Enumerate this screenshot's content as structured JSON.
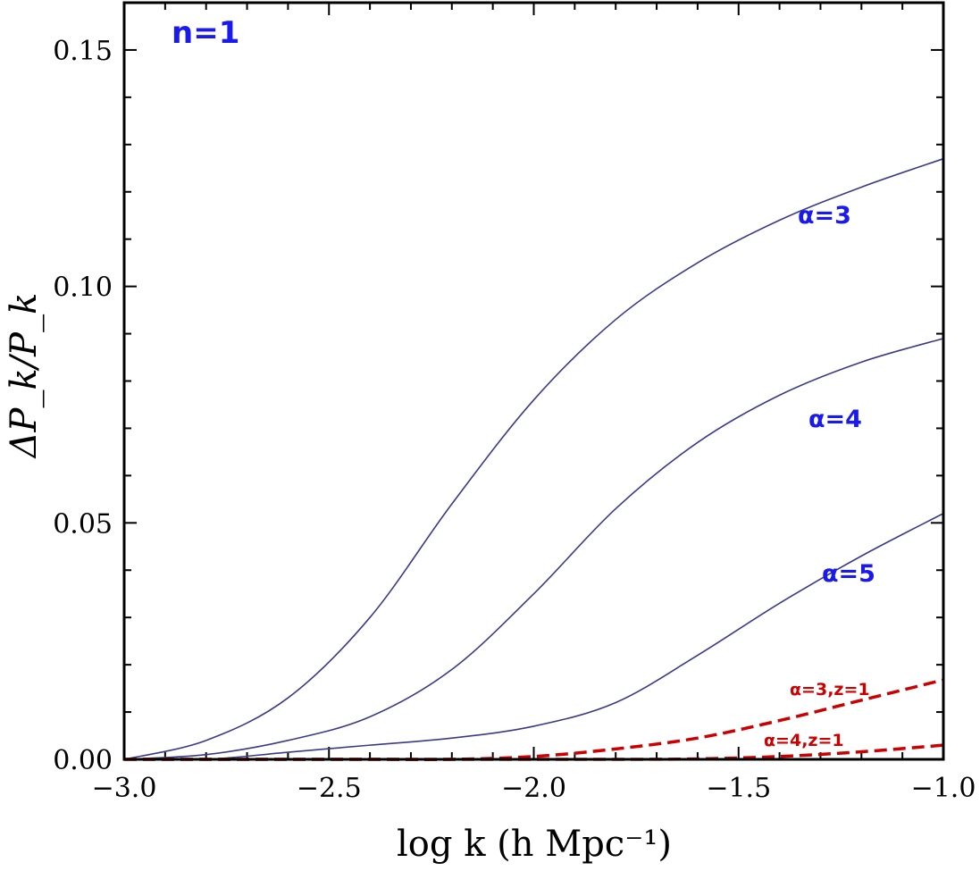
{
  "chart_data": {
    "type": "line",
    "title": "",
    "panel_label": "n=1",
    "xlabel": "log k (h Mpc⁻¹)",
    "ylabel": "ΔP_k/P_k",
    "xlim": [
      -3.0,
      -1.0
    ],
    "ylim": [
      0.0,
      0.16
    ],
    "x_ticks": [
      -3.0,
      -2.5,
      -2.0,
      -1.5,
      -1.0
    ],
    "x_tick_labels": [
      "−3.0",
      "−2.5",
      "−2.0",
      "−1.5",
      "−1.0"
    ],
    "y_ticks": [
      0.0,
      0.05,
      0.1,
      0.15
    ],
    "y_tick_labels": [
      "0.00",
      "0.05",
      "0.10",
      "0.15"
    ],
    "x": [
      -3.0,
      -2.8,
      -2.6,
      -2.4,
      -2.2,
      -2.0,
      -1.8,
      -1.6,
      -1.4,
      -1.2,
      -1.0
    ],
    "series": [
      {
        "name": "α=3",
        "label": "α=3",
        "style": "solid",
        "color": "#3a3a8c",
        "values": [
          0.0,
          0.004,
          0.013,
          0.03,
          0.054,
          0.076,
          0.093,
          0.105,
          0.114,
          0.121,
          0.127
        ]
      },
      {
        "name": "α=4",
        "label": "α=4",
        "style": "solid",
        "color": "#3a3a8c",
        "values": [
          0.0,
          0.001,
          0.004,
          0.009,
          0.019,
          0.035,
          0.053,
          0.067,
          0.077,
          0.084,
          0.089
        ]
      },
      {
        "name": "α=5",
        "label": "α=5",
        "style": "solid",
        "color": "#3a3a8c",
        "values": [
          0.0,
          0.0,
          0.0015,
          0.003,
          0.0045,
          0.007,
          0.012,
          0.022,
          0.033,
          0.043,
          0.052
        ]
      },
      {
        "name": "α=3,z=1",
        "label": "α=3,z=1",
        "style": "dashed",
        "color": "#cc0000",
        "values": [
          0.0,
          0.0,
          0.0,
          0.0,
          0.0,
          0.0006,
          0.0022,
          0.0045,
          0.0082,
          0.0125,
          0.0168
        ]
      },
      {
        "name": "α=4,z=1",
        "label": "α=4,z=1",
        "style": "dashed",
        "color": "#cc0000",
        "values": [
          0.0,
          0.0,
          0.0,
          0.0,
          0.0,
          0.0,
          0.0,
          0.0001,
          0.0006,
          0.0016,
          0.003
        ]
      }
    ]
  },
  "colors": {
    "annotation_blue": "#1a1aee",
    "annotation_red": "#cc0000",
    "curve_blue": "#3a3a8c",
    "frame": "#000000"
  }
}
